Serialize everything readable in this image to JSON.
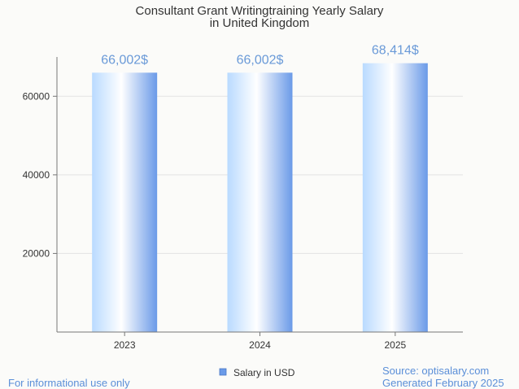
{
  "chart_data": {
    "type": "bar",
    "title": [
      "Consultant Grant Writingtraining Yearly Salary",
      "in United Kingdom"
    ],
    "categories": [
      "2023",
      "2024",
      "2025"
    ],
    "series": [
      {
        "name": "Salary in USD",
        "values": [
          66002,
          66002,
          68414
        ]
      }
    ],
    "data_labels": [
      "66,002$",
      "66,002$",
      "68,414$"
    ],
    "y_ticks": [
      20000,
      40000,
      60000
    ],
    "ylim": [
      0,
      70000
    ],
    "grid": true,
    "legend": "bottom-center",
    "colors": {
      "bar_light": "#ffffff",
      "bar_mid": "#b9daff",
      "bar_dark": "#6a9ae8",
      "label": "#6a9ad8"
    }
  },
  "footer": {
    "disclaimer": "For informational use only",
    "source": "Source: optisalary.com",
    "generated": "Generated February 2025"
  }
}
